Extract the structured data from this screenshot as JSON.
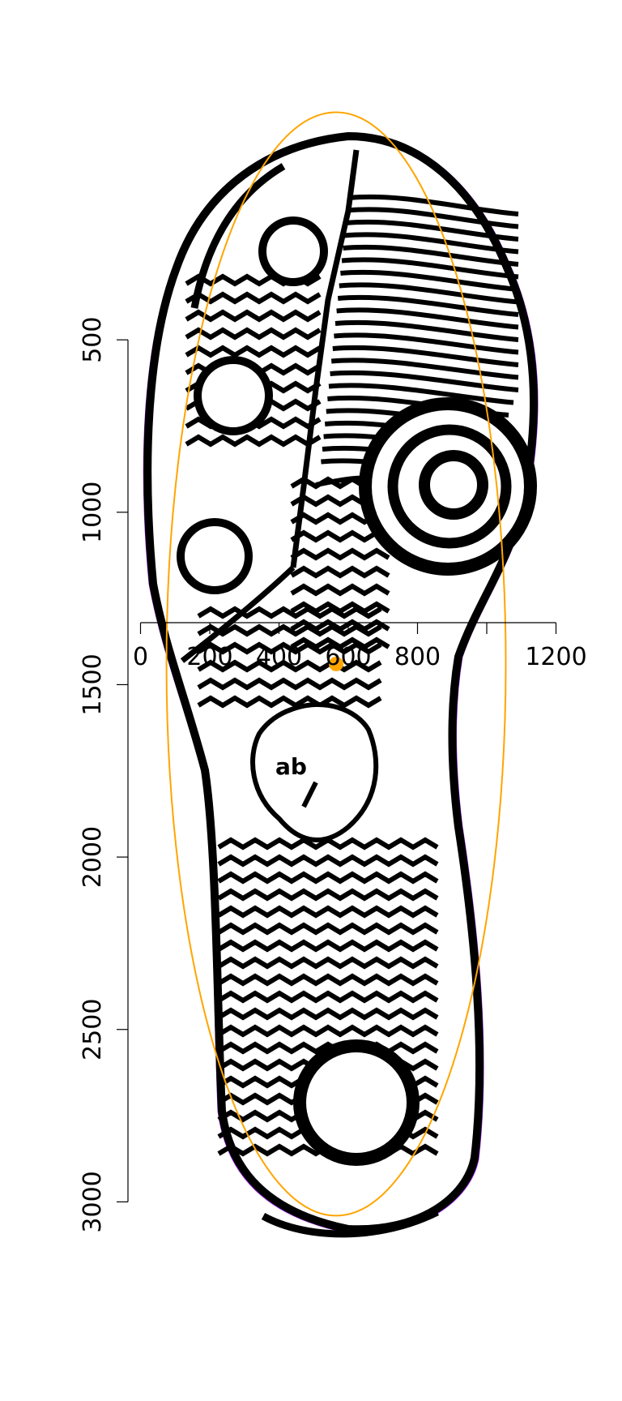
{
  "chart_data": {
    "type": "scatter",
    "title": "",
    "xlabel": "",
    "ylabel": "",
    "x_range": [
      -30,
      1220
    ],
    "y_range": [
      250,
      3300
    ],
    "y_inverted": true,
    "x_ticks": [
      0,
      200,
      400,
      600,
      800,
      1000,
      1200
    ],
    "x_tick_labels": [
      "0",
      "200",
      "400",
      "600",
      "800",
      "",
      "1200"
    ],
    "y_ticks": [
      500,
      1000,
      1500,
      2000,
      2500,
      3000
    ],
    "y_tick_labels": [
      "500",
      "1000",
      "1500",
      "2000",
      "2500",
      "3000"
    ],
    "background_image": "shoe-sole-print",
    "series": [
      {
        "kind": "point",
        "color": "#ffa500",
        "x": 565,
        "y": 1440
      },
      {
        "kind": "ellipse",
        "color": "#ffa500",
        "center": [
          565,
          1440
        ],
        "semi_axis_x": 490,
        "semi_axis_y": 1600
      }
    ],
    "colors": {
      "outline": "#a020f0",
      "fit": "#ffa500",
      "print": "#000000"
    }
  }
}
